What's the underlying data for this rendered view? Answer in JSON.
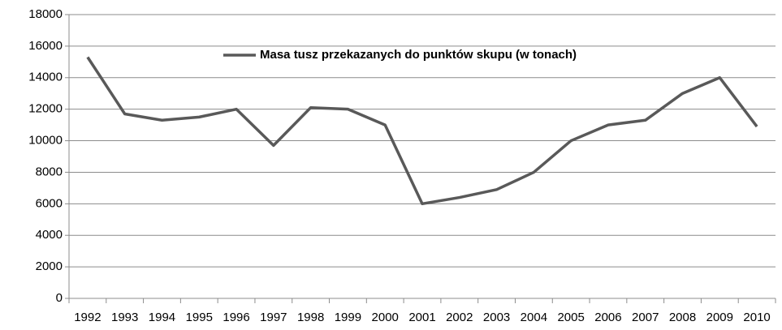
{
  "chart_data": {
    "type": "line",
    "categories": [
      "1992",
      "1993",
      "1994",
      "1995",
      "1996",
      "1997",
      "1998",
      "1999",
      "2000",
      "2001",
      "2002",
      "2003",
      "2004",
      "2005",
      "2006",
      "2007",
      "2008",
      "2009",
      "2010"
    ],
    "series": [
      {
        "name": "Masa tusz przekazanych do punktów skupu (w tonach)",
        "color": "#595959",
        "values": [
          15300,
          11700,
          11300,
          11500,
          12000,
          9700,
          12100,
          12000,
          11000,
          6000,
          6400,
          6900,
          8000,
          10000,
          11000,
          11300,
          13000,
          14000,
          10900
        ]
      }
    ],
    "ylim": [
      0,
      18000
    ],
    "yticks": [
      0,
      2000,
      4000,
      6000,
      8000,
      10000,
      12000,
      14000,
      16000,
      18000
    ],
    "grid": true,
    "legend": "top"
  }
}
